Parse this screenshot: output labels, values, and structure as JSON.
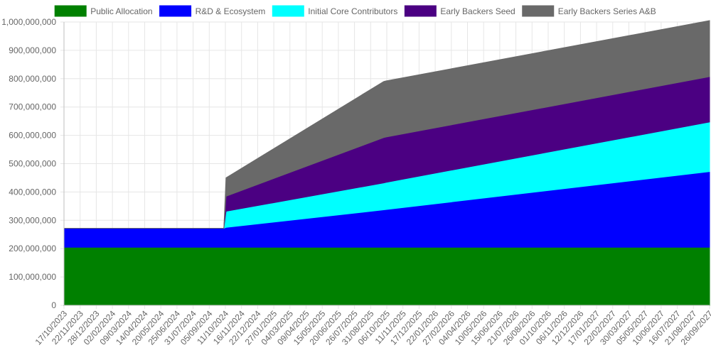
{
  "chart_data": {
    "type": "area",
    "stacked": true,
    "grid": true,
    "legend_position": "top",
    "ylim": [
      0,
      1000000000
    ],
    "y_tick_step": 100000000,
    "y_ticks": [
      "0",
      "100,000,000",
      "200,000,000",
      "300,000,000",
      "400,000,000",
      "500,000,000",
      "600,000,000",
      "700,000,000",
      "800,000,000",
      "900,000,000",
      "1,000,000,000"
    ],
    "x_labels": [
      "17/10/2023",
      "22/11/2023",
      "28/12/2023",
      "02/02/2024",
      "09/03/2024",
      "14/04/2024",
      "20/05/2024",
      "25/06/2024",
      "31/07/2024",
      "05/09/2024",
      "11/10/2024",
      "16/11/2024",
      "22/12/2024",
      "27/01/2025",
      "04/03/2025",
      "09/04/2025",
      "15/05/2025",
      "20/06/2025",
      "26/07/2025",
      "31/08/2025",
      "06/10/2025",
      "11/11/2025",
      "17/12/2025",
      "22/01/2026",
      "27/02/2026",
      "04/04/2026",
      "10/05/2026",
      "15/06/2026",
      "21/07/2026",
      "26/08/2026",
      "01/10/2026",
      "06/11/2026",
      "12/12/2026",
      "17/01/2027",
      "22/02/2027",
      "30/03/2027",
      "05/05/2027",
      "10/06/2027",
      "16/07/2027",
      "21/08/2027",
      "26/09/2027"
    ],
    "x": [
      "17/10/2023",
      "11/10/2024",
      "16/10/2024",
      "06/10/2025",
      "11/10/2025",
      "10/10/2027"
    ],
    "series": [
      {
        "name": "Public Allocation",
        "color": "#008000",
        "values": [
          205000000,
          205000000,
          205000000,
          205000000,
          205000000,
          205000000
        ]
      },
      {
        "name": "R&D & Ecosystem",
        "color": "#0000ff",
        "values": [
          67000000,
          67000000,
          70000000,
          132000000,
          133000000,
          267000000
        ]
      },
      {
        "name": "Initial Core Contributors",
        "color": "#00ffff",
        "values": [
          0,
          0,
          57000000,
          95000000,
          96000000,
          175000000
        ]
      },
      {
        "name": "Early Backers Seed",
        "color": "#4b0082",
        "values": [
          0,
          0,
          53000000,
          160000000,
          160000000,
          160000000
        ]
      },
      {
        "name": "Early Backers Series A&B",
        "color": "#696969",
        "values": [
          0,
          0,
          65000000,
          198000000,
          198000000,
          198000000
        ]
      }
    ]
  }
}
